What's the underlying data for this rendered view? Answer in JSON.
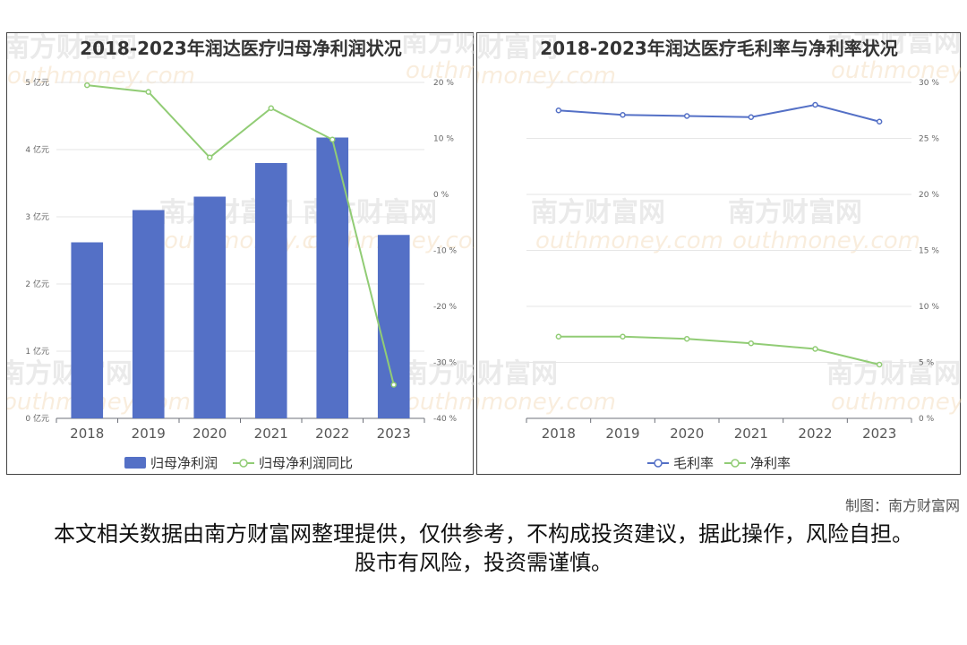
{
  "footer": {
    "credit": "制图：南方财富网",
    "disclaimer": "本文相关数据由南方财富网整理提供，仅供参考，不构成投资建议，据此操作，风险自担。股市有风险，投资需谨慎。"
  },
  "chart_data": [
    {
      "type": "bar",
      "title": "2018-2023年润达医疗归母净利润状况",
      "categories": [
        "2018",
        "2019",
        "2020",
        "2021",
        "2022",
        "2023"
      ],
      "series": [
        {
          "name": "归母净利润",
          "type": "bar",
          "axis": "left",
          "color": "#5470c6",
          "values": [
            2.62,
            3.1,
            3.3,
            3.8,
            4.18,
            2.73
          ]
        },
        {
          "name": "归母净利润同比",
          "type": "line",
          "axis": "right",
          "color": "#91cc75",
          "values": [
            19.5,
            18.3,
            6.6,
            15.4,
            9.8,
            -34.0
          ]
        }
      ],
      "left_axis": {
        "ticks": [
          0,
          1,
          2,
          3,
          4,
          5
        ],
        "unit_suffix": "亿元",
        "ylim": [
          0,
          5
        ]
      },
      "right_axis": {
        "ticks": [
          -40,
          -30,
          -20,
          -10,
          0,
          10,
          20
        ],
        "unit_suffix": "%",
        "ylim": [
          -40,
          20
        ]
      },
      "legend_position": "bottom",
      "grid": "horizontal"
    },
    {
      "type": "line",
      "title": "2018-2023年润达医疗毛利率与净利率状况",
      "categories": [
        "2018",
        "2019",
        "2020",
        "2021",
        "2022",
        "2023"
      ],
      "series": [
        {
          "name": "毛利率",
          "color": "#5470c6",
          "values": [
            27.5,
            27.1,
            27.0,
            26.9,
            28.0,
            26.5
          ]
        },
        {
          "name": "净利率",
          "color": "#91cc75",
          "values": [
            7.3,
            7.3,
            7.1,
            6.7,
            6.2,
            4.8
          ]
        }
      ],
      "right_axis": {
        "ticks": [
          0,
          5,
          10,
          15,
          20,
          25,
          30
        ],
        "unit_suffix": "%",
        "ylim": [
          0,
          30
        ]
      },
      "legend_position": "bottom",
      "grid": "horizontal"
    }
  ]
}
